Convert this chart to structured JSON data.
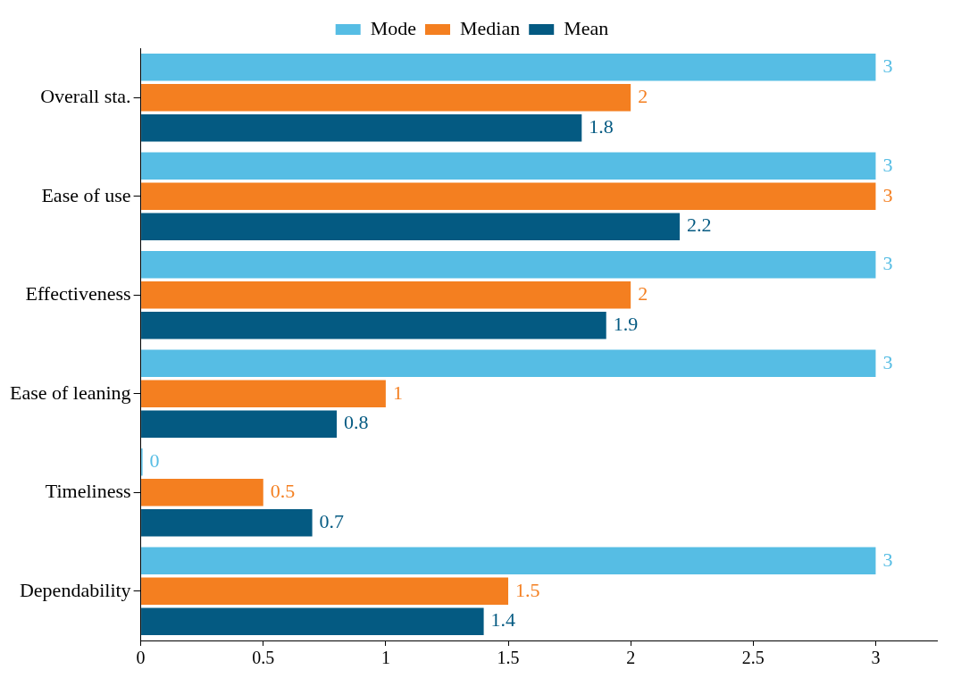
{
  "chart_data": {
    "type": "bar",
    "orientation": "horizontal",
    "categories": [
      "Overall sta.",
      "Ease of use",
      "Effectiveness",
      "Ease of leaning",
      "Timeliness",
      "Dependability"
    ],
    "series": [
      {
        "name": "Mode",
        "color": "#56bde4",
        "values": [
          3,
          3,
          3,
          3,
          0,
          3
        ]
      },
      {
        "name": "Median",
        "color": "#f47f20",
        "values": [
          2,
          3,
          2,
          1,
          0.5,
          1.5
        ]
      },
      {
        "name": "Mean",
        "color": "#045a82",
        "values": [
          1.8,
          2.2,
          1.9,
          0.8,
          0.7,
          1.4
        ]
      }
    ],
    "xlim": [
      0,
      3.25
    ],
    "xticks": [
      0,
      0.5,
      1,
      1.5,
      2,
      2.5,
      3
    ],
    "grid": false,
    "legend": "top",
    "data_labels": true
  }
}
